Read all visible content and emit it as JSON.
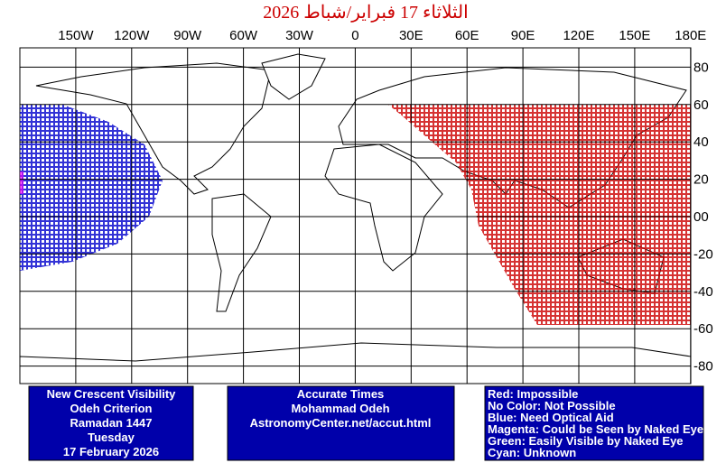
{
  "title": "الثلاثاء 17 فبراير/شباط 2026",
  "x_axis": {
    "ticks": [
      "150W",
      "120W",
      "90W",
      "60W",
      "30W",
      "0",
      "30E",
      "60E",
      "90E",
      "120E",
      "150E",
      "180E"
    ]
  },
  "y_axis": {
    "ticks": [
      "80",
      "60",
      "40",
      "20",
      "00",
      "-20",
      "-40",
      "-60",
      "-80"
    ]
  },
  "info_box": {
    "lines": [
      "New Crescent Visibility",
      "Odeh Criterion",
      "Ramadan 1447",
      "Tuesday",
      "17 February 2026"
    ]
  },
  "credit_box": {
    "lines": [
      "Accurate Times",
      "Mohammad Odeh",
      "AstronomyCenter.net/accut.html"
    ]
  },
  "legend": {
    "lines": [
      "Red: Impossible",
      "No Color: Not Possible",
      "Blue: Need Optical Aid",
      "Magenta: Could be Seen by Naked Eye",
      "Green: Easily Visible by Naked Eye",
      "Cyan: Unknown"
    ]
  }
}
